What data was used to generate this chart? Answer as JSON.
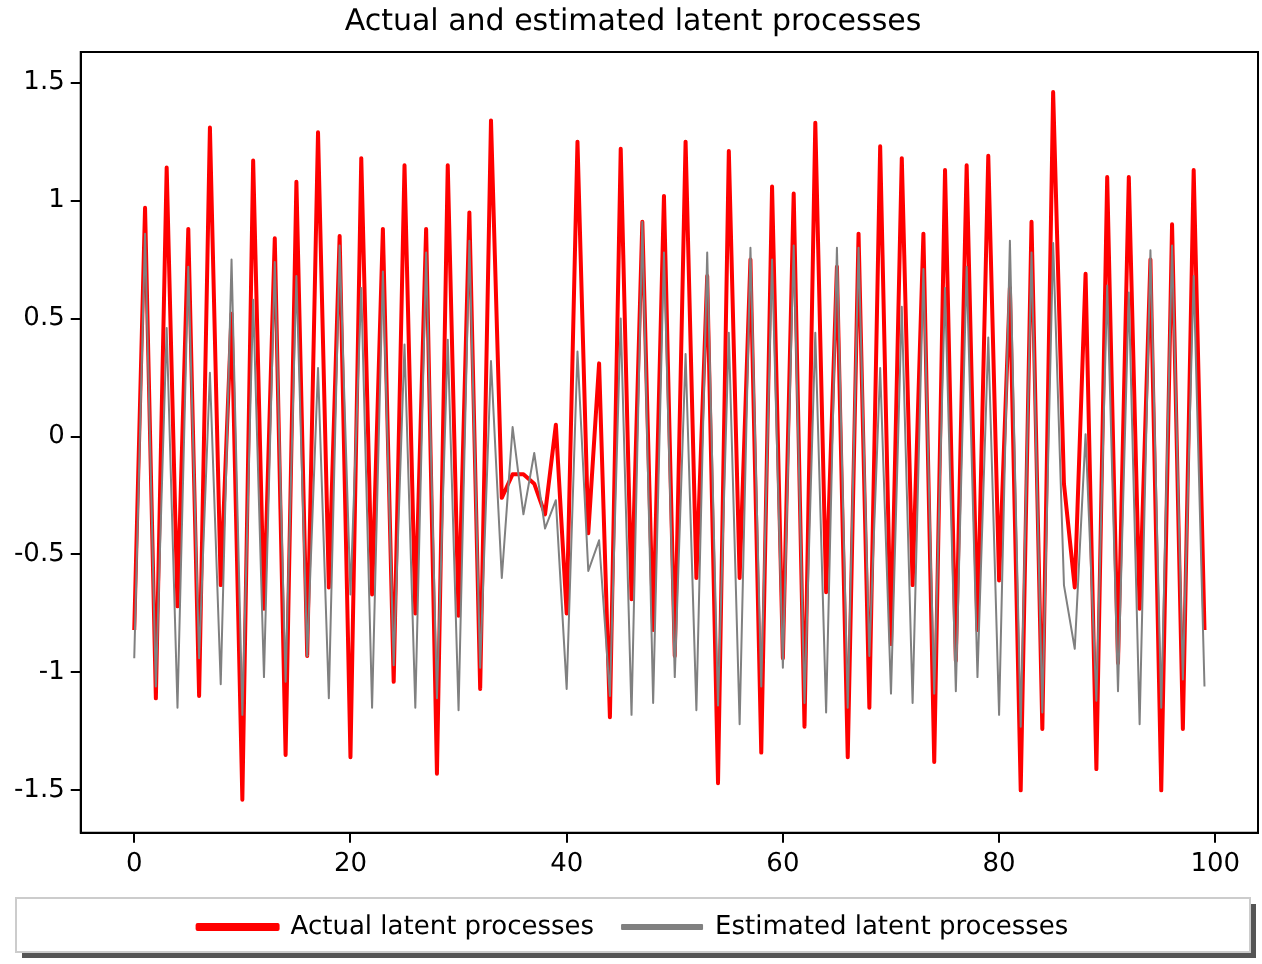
{
  "chart_data": {
    "type": "line",
    "title": "Actual and estimated latent processes",
    "x": [
      0,
      1,
      2,
      3,
      4,
      5,
      6,
      7,
      8,
      9,
      10,
      11,
      12,
      13,
      14,
      15,
      16,
      17,
      18,
      19,
      20,
      21,
      22,
      23,
      24,
      25,
      26,
      27,
      28,
      29,
      30,
      31,
      32,
      33,
      34,
      35,
      36,
      37,
      38,
      39,
      40,
      41,
      42,
      43,
      44,
      45,
      46,
      47,
      48,
      49,
      50,
      51,
      52,
      53,
      54,
      55,
      56,
      57,
      58,
      59,
      60,
      61,
      62,
      63,
      64,
      65,
      66,
      67,
      68,
      69,
      70,
      71,
      72,
      73,
      74,
      75,
      76,
      77,
      78,
      79,
      80,
      81,
      82,
      83,
      84,
      85,
      86,
      87,
      88,
      89,
      90,
      91,
      92,
      93,
      94,
      95,
      96,
      97,
      98,
      99
    ],
    "series": [
      {
        "name": "Actual latent processes",
        "color": "#ff0000",
        "values": [
          -0.82,
          0.97,
          -1.11,
          1.14,
          -0.72,
          0.88,
          -1.1,
          1.31,
          -0.63,
          0.52,
          -1.54,
          1.17,
          -0.73,
          0.84,
          -1.35,
          1.08,
          -0.93,
          1.29,
          -0.64,
          0.85,
          -1.36,
          1.18,
          -0.67,
          0.88,
          -1.04,
          1.15,
          -0.75,
          0.88,
          -1.43,
          1.15,
          -0.76,
          0.95,
          -1.07,
          1.34,
          -0.26,
          -0.16,
          -0.16,
          -0.2,
          -0.33,
          0.05,
          -0.75,
          1.25,
          -0.41,
          0.31,
          -1.19,
          1.22,
          -0.69,
          0.91,
          -0.82,
          1.02,
          -0.93,
          1.25,
          -0.6,
          0.68,
          -1.47,
          1.21,
          -0.6,
          0.75,
          -1.34,
          1.06,
          -0.94,
          1.03,
          -1.23,
          1.33,
          -0.66,
          0.72,
          -1.36,
          0.86,
          -1.15,
          1.23,
          -0.88,
          1.18,
          -0.63,
          0.86,
          -1.38,
          1.13,
          -0.95,
          1.15,
          -0.82,
          1.19,
          -0.61,
          0.63,
          -1.5,
          0.91,
          -1.24,
          1.46,
          -0.2,
          -0.64,
          0.69,
          -1.41,
          1.1,
          -0.96,
          1.1,
          -0.73,
          0.75,
          -1.5,
          0.9,
          -1.24,
          1.13,
          -0.82
        ]
      },
      {
        "name": "Estimated latent processes",
        "color": "#808080",
        "values": [
          -0.94,
          0.86,
          -1.06,
          0.46,
          -1.15,
          0.72,
          -0.94,
          0.27,
          -1.05,
          0.75,
          -1.18,
          0.58,
          -1.02,
          0.74,
          -1.04,
          0.68,
          -0.93,
          0.29,
          -1.11,
          0.81,
          -0.67,
          0.63,
          -1.15,
          0.7,
          -0.97,
          0.39,
          -1.15,
          0.78,
          -1.11,
          0.41,
          -1.16,
          0.83,
          -0.98,
          0.32,
          -0.6,
          0.04,
          -0.33,
          -0.07,
          -0.39,
          -0.27,
          -1.07,
          0.36,
          -0.57,
          -0.44,
          -1.1,
          0.5,
          -1.18,
          0.91,
          -1.13,
          0.78,
          -1.02,
          0.35,
          -1.16,
          0.78,
          -1.14,
          0.44,
          -1.22,
          0.8,
          -1.06,
          0.75,
          -0.98,
          0.81,
          -1.13,
          0.44,
          -1.17,
          0.8,
          -1.15,
          0.8,
          -0.93,
          0.29,
          -1.09,
          0.55,
          -1.13,
          0.71,
          -1.09,
          0.63,
          -1.08,
          0.72,
          -1.02,
          0.42,
          -1.18,
          0.83,
          -1.23,
          0.78,
          -1.17,
          0.82,
          -0.63,
          -0.9,
          0.01,
          -1.12,
          0.64,
          -1.08,
          0.61,
          -1.22,
          0.79,
          -1.15,
          0.81,
          -1.03,
          0.68,
          -1.06
        ]
      }
    ],
    "xlim": [
      -4.95,
      103.95
    ],
    "xticks": [
      0,
      20,
      40,
      60,
      80,
      100
    ],
    "ylim": [
      -1.68,
      1.63
    ],
    "yticks": [
      -1.5,
      -1.0,
      -0.5,
      0.0,
      0.5,
      1.0,
      1.5
    ],
    "grid": false,
    "legend": "bottom",
    "marker": "none",
    "line_style": "solid"
  }
}
